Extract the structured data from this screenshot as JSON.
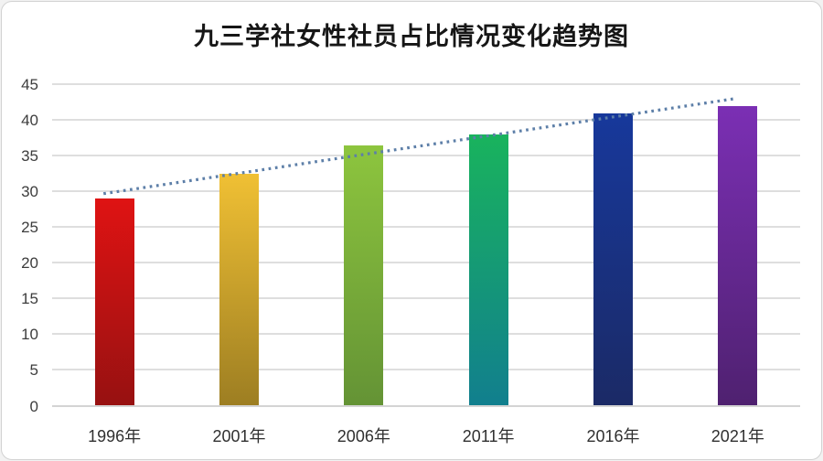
{
  "chart_data": {
    "type": "bar",
    "title": "九三学社女性社员占比情况变化趋势图",
    "categories": [
      "1996年",
      "2001年",
      "2006年",
      "2011年",
      "2016年",
      "2021年"
    ],
    "values": [
      29,
      32.5,
      36.5,
      38,
      41,
      42
    ],
    "ylim": [
      0,
      45
    ],
    "ytick_step": 5,
    "yticks": [
      0,
      5,
      10,
      15,
      20,
      25,
      30,
      35,
      40,
      45
    ],
    "xlabel": "",
    "ylabel": "",
    "grid": true,
    "legend": false,
    "bar_gradients": [
      [
        "#df1313",
        "#971111"
      ],
      [
        "#f0c034",
        "#9d7e22"
      ],
      [
        "#8dc53e",
        "#649335"
      ],
      [
        "#19b35d",
        "#117f8e"
      ],
      [
        "#17389b",
        "#1b2a66"
      ],
      [
        "#7b2fb4",
        "#4f2170"
      ]
    ],
    "trendline": {
      "type": "linear",
      "style": "dotted",
      "color": "#5d7fa8"
    },
    "colors": {
      "gridline": "#dedede",
      "baseline": "#d4d4d4",
      "axis_text": "#3d3d3d",
      "title_text": "#161616",
      "panel_border": "#d2d2d2",
      "background": "#ffffff"
    }
  }
}
